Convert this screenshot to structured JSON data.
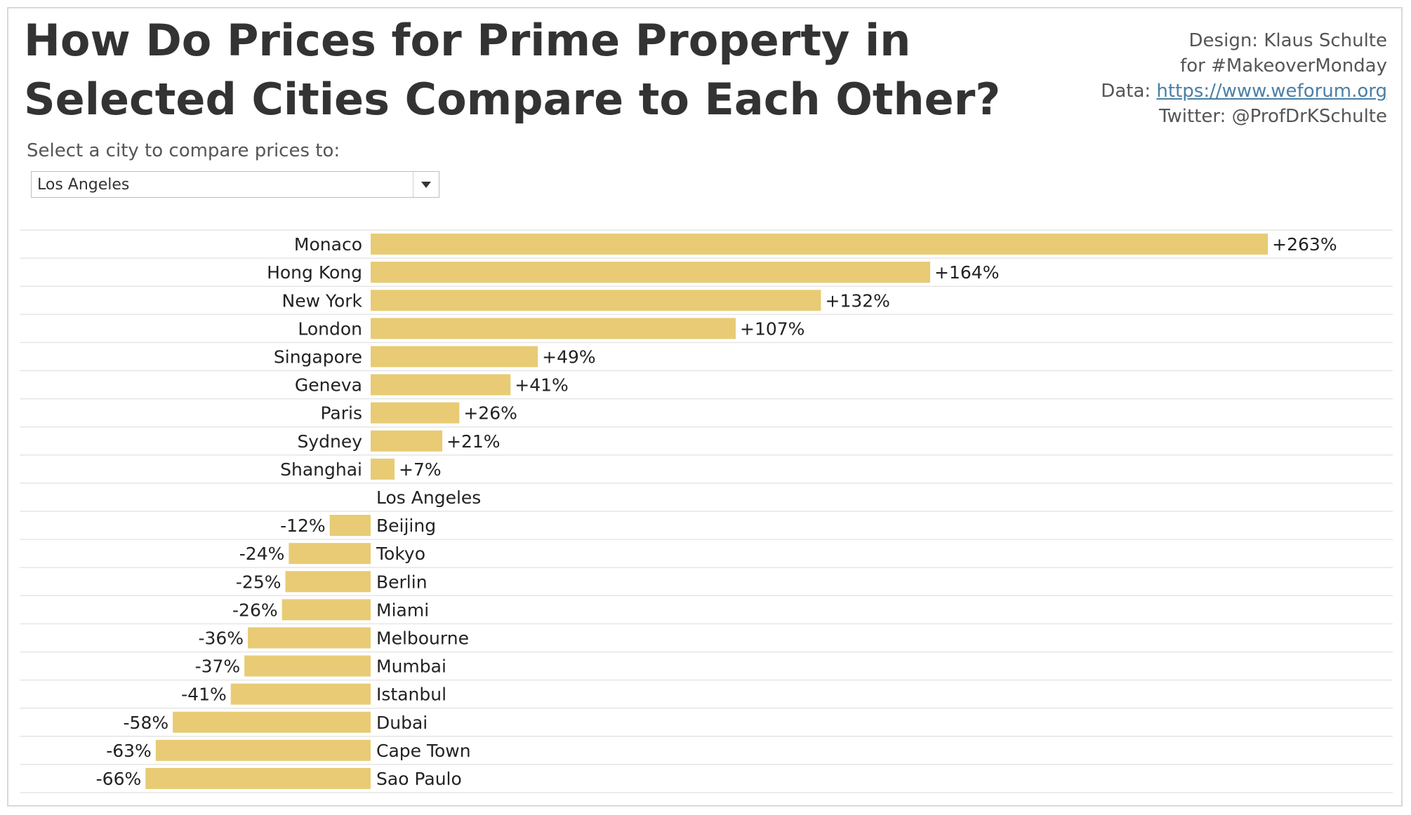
{
  "title": "How Do Prices for Prime Property in Selected Cities Compare to Each Other?",
  "credits": {
    "line1": "Design: Klaus Schulte",
    "line2": "for #MakeoverMonday",
    "line3_prefix": "Data: ",
    "line3_link": "https://www.weforum.org",
    "line4": "Twitter: @ProfDrKSchulte"
  },
  "filter": {
    "label": "Select a city to compare prices to:",
    "selected": "Los Angeles"
  },
  "colors": {
    "bar": "#e8cb74",
    "gridline": "#e6e6e6",
    "text": "#222222"
  },
  "chart_data": {
    "type": "bar",
    "orientation": "horizontal",
    "title": "How Do Prices for Prime Property in Selected Cities Compare to Each Other?",
    "xlabel": "",
    "ylabel": "",
    "reference": "Los Angeles",
    "xlim": [
      -70,
      270
    ],
    "grid": "horizontal row separators",
    "categories": [
      "Monaco",
      "Hong Kong",
      "New York",
      "London",
      "Singapore",
      "Geneva",
      "Paris",
      "Sydney",
      "Shanghai",
      "Los Angeles",
      "Beijing",
      "Tokyo",
      "Berlin",
      "Miami",
      "Melbourne",
      "Mumbai",
      "Istanbul",
      "Dubai",
      "Cape Town",
      "Sao Paulo"
    ],
    "values": [
      263,
      164,
      132,
      107,
      49,
      41,
      26,
      21,
      7,
      0,
      -12,
      -24,
      -25,
      -26,
      -36,
      -37,
      -41,
      -58,
      -63,
      -66
    ],
    "value_labels": [
      "+263%",
      "+164%",
      "+132%",
      "+107%",
      "+49%",
      "+41%",
      "+26%",
      "+21%",
      "+7%",
      "",
      "-12%",
      "-24%",
      "-25%",
      "-26%",
      "-36%",
      "-37%",
      "-41%",
      "-58%",
      "-63%",
      "-66%"
    ]
  }
}
